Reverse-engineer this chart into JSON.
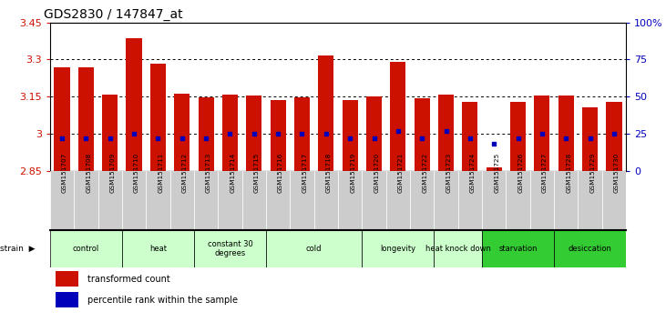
{
  "title": "GDS2830 / 147847_at",
  "samples": [
    "GSM151707",
    "GSM151708",
    "GSM151709",
    "GSM151710",
    "GSM151711",
    "GSM151712",
    "GSM151713",
    "GSM151714",
    "GSM151715",
    "GSM151716",
    "GSM151717",
    "GSM151718",
    "GSM151719",
    "GSM151720",
    "GSM151721",
    "GSM151722",
    "GSM151723",
    "GSM151724",
    "GSM151725",
    "GSM151726",
    "GSM151727",
    "GSM151728",
    "GSM151729",
    "GSM151730"
  ],
  "bar_values": [
    3.27,
    3.27,
    3.157,
    3.385,
    3.285,
    3.163,
    3.147,
    3.157,
    3.153,
    3.137,
    3.148,
    3.318,
    3.135,
    3.152,
    3.29,
    3.143,
    3.157,
    3.128,
    2.865,
    3.128,
    3.153,
    3.153,
    3.108,
    3.128
  ],
  "percentile_values": [
    22,
    22,
    22,
    25,
    22,
    22,
    22,
    25,
    25,
    25,
    25,
    25,
    22,
    22,
    27,
    22,
    27,
    22,
    18,
    22,
    25,
    22,
    22,
    25
  ],
  "groups": [
    {
      "label": "control",
      "start": 0,
      "end": 2,
      "color": "#ccffcc"
    },
    {
      "label": "heat",
      "start": 3,
      "end": 5,
      "color": "#ccffcc"
    },
    {
      "label": "constant 30\ndegrees",
      "start": 6,
      "end": 8,
      "color": "#ccffcc"
    },
    {
      "label": "cold",
      "start": 9,
      "end": 12,
      "color": "#ccffcc"
    },
    {
      "label": "longevity",
      "start": 13,
      "end": 15,
      "color": "#ccffcc"
    },
    {
      "label": "heat knock down",
      "start": 16,
      "end": 17,
      "color": "#ccffcc"
    },
    {
      "label": "starvation",
      "start": 18,
      "end": 20,
      "color": "#33cc33"
    },
    {
      "label": "desiccation",
      "start": 21,
      "end": 23,
      "color": "#33cc33"
    }
  ],
  "ylim_left": [
    2.85,
    3.45
  ],
  "ylim_right": [
    0,
    100
  ],
  "yticks_left": [
    2.85,
    3.0,
    3.15,
    3.3,
    3.45
  ],
  "ytick_labels_left": [
    "2.85",
    "3",
    "3.15",
    "3.3",
    "3.45"
  ],
  "yticks_right": [
    0,
    25,
    50,
    75,
    100
  ],
  "ytick_labels_right": [
    "0",
    "25",
    "50",
    "75",
    "100%"
  ],
  "bar_color": "#cc1100",
  "dot_color": "#0000bb",
  "bar_width": 0.65,
  "axis_left_color": "#cc1100",
  "axis_right_color": "#0000bb",
  "grid_ticks": [
    3.0,
    3.15,
    3.3
  ],
  "label_bg_color": "#cccccc",
  "group_border_color": "#000000"
}
